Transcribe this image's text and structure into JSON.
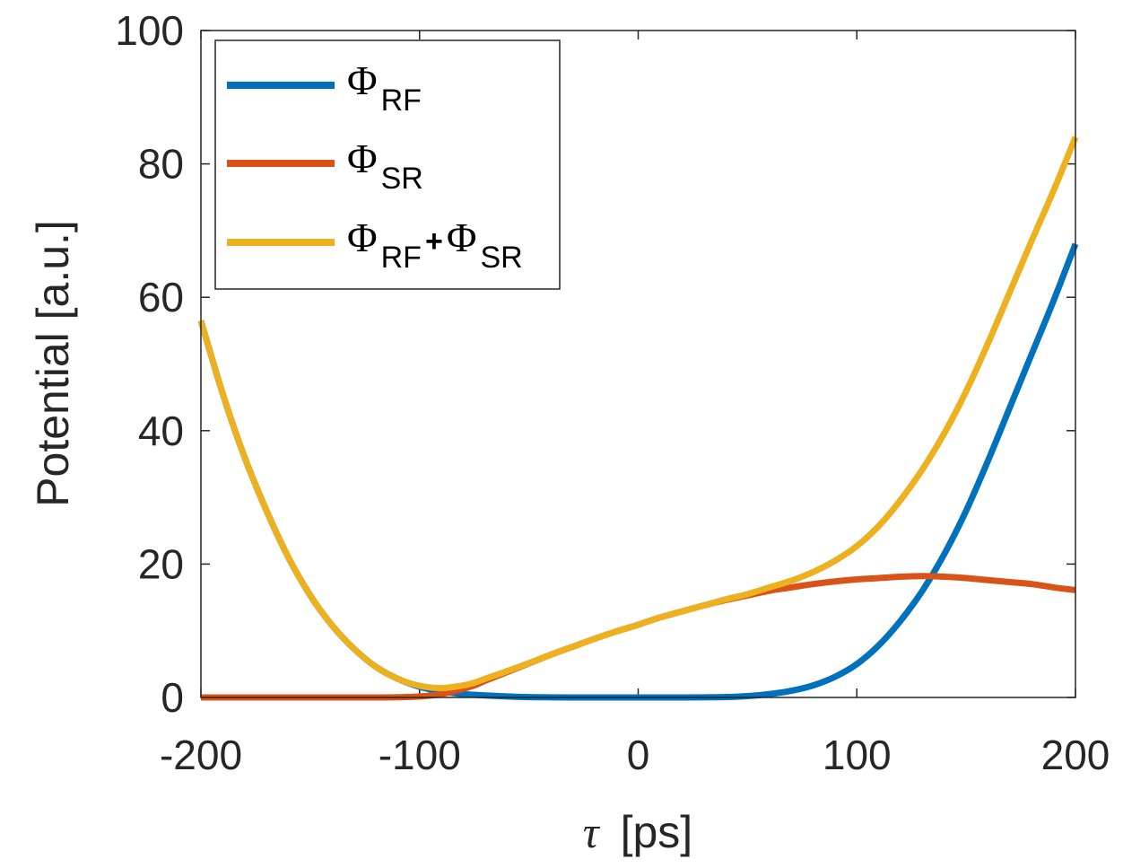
{
  "chart_data": {
    "type": "line",
    "title": "",
    "xlabel_symbol": "τ",
    "xlabel_unit": "[ps]",
    "ylabel": "Potential [a.u.]",
    "xlim": [
      -200,
      200
    ],
    "ylim": [
      0,
      100
    ],
    "xticks": [
      -200,
      -100,
      0,
      100,
      200
    ],
    "yticks": [
      0,
      20,
      40,
      60,
      80,
      100
    ],
    "xtick_labels": [
      "-200",
      "-100",
      "0",
      "100",
      "200"
    ],
    "ytick_labels": [
      "0",
      "20",
      "40",
      "60",
      "80",
      "100"
    ],
    "legend_position": "top-left",
    "x": [
      -200,
      -190,
      -180,
      -170,
      -160,
      -150,
      -140,
      -130,
      -120,
      -110,
      -100,
      -90,
      -80,
      -75,
      -70,
      -60,
      -50,
      -40,
      -30,
      -20,
      -10,
      0,
      10,
      20,
      30,
      40,
      50,
      60,
      70,
      80,
      90,
      100,
      110,
      120,
      130,
      140,
      150,
      160,
      170,
      180,
      190,
      200
    ],
    "series": [
      {
        "name": "RF",
        "label_main": "Φ",
        "label_sub": "RF",
        "color": "#0072BD",
        "values": [
          56.5,
          45.5,
          36.0,
          28.0,
          21.0,
          15.3,
          10.8,
          7.3,
          4.6,
          2.8,
          1.6,
          0.9,
          0.5,
          0.4,
          0.3,
          0.15,
          0.05,
          0.02,
          0.0,
          0.0,
          0.0,
          0.0,
          0.0,
          0.0,
          0.02,
          0.06,
          0.2,
          0.5,
          1.0,
          1.8,
          3.1,
          5.0,
          7.8,
          11.5,
          16.0,
          21.5,
          28.0,
          35.5,
          43.5,
          51.5,
          59.5,
          68.0
        ]
      },
      {
        "name": "SR",
        "label_main": "Φ",
        "label_sub": "SR",
        "color": "#D95319",
        "values": [
          0.0,
          0.0,
          0.0,
          0.0,
          0.0,
          0.0,
          0.0,
          0.0,
          0.0,
          0.03,
          0.15,
          0.5,
          1.3,
          1.8,
          2.5,
          3.8,
          5.1,
          6.4,
          7.6,
          8.8,
          9.9,
          10.9,
          12.0,
          12.9,
          13.8,
          14.6,
          15.3,
          16.0,
          16.5,
          17.0,
          17.4,
          17.7,
          17.9,
          18.1,
          18.2,
          18.1,
          17.9,
          17.6,
          17.3,
          17.0,
          16.5,
          16.1
        ]
      },
      {
        "name": "RF+SR",
        "label_main_1": "Φ",
        "label_sub_1": "RF",
        "label_plus": "+",
        "label_main_2": "Φ",
        "label_sub_2": "SR",
        "color": "#EDB120",
        "values": [
          56.5,
          45.5,
          36.0,
          28.0,
          21.0,
          15.3,
          10.8,
          7.3,
          4.6,
          2.8,
          1.75,
          1.4,
          1.8,
          2.2,
          2.8,
          3.95,
          5.15,
          6.4,
          7.6,
          8.8,
          9.9,
          10.9,
          12.0,
          12.9,
          13.8,
          14.7,
          15.5,
          16.5,
          17.5,
          18.8,
          20.5,
          22.7,
          25.7,
          29.6,
          34.2,
          39.6,
          45.9,
          53.1,
          60.8,
          68.5,
          76.0,
          84.0
        ]
      }
    ]
  }
}
